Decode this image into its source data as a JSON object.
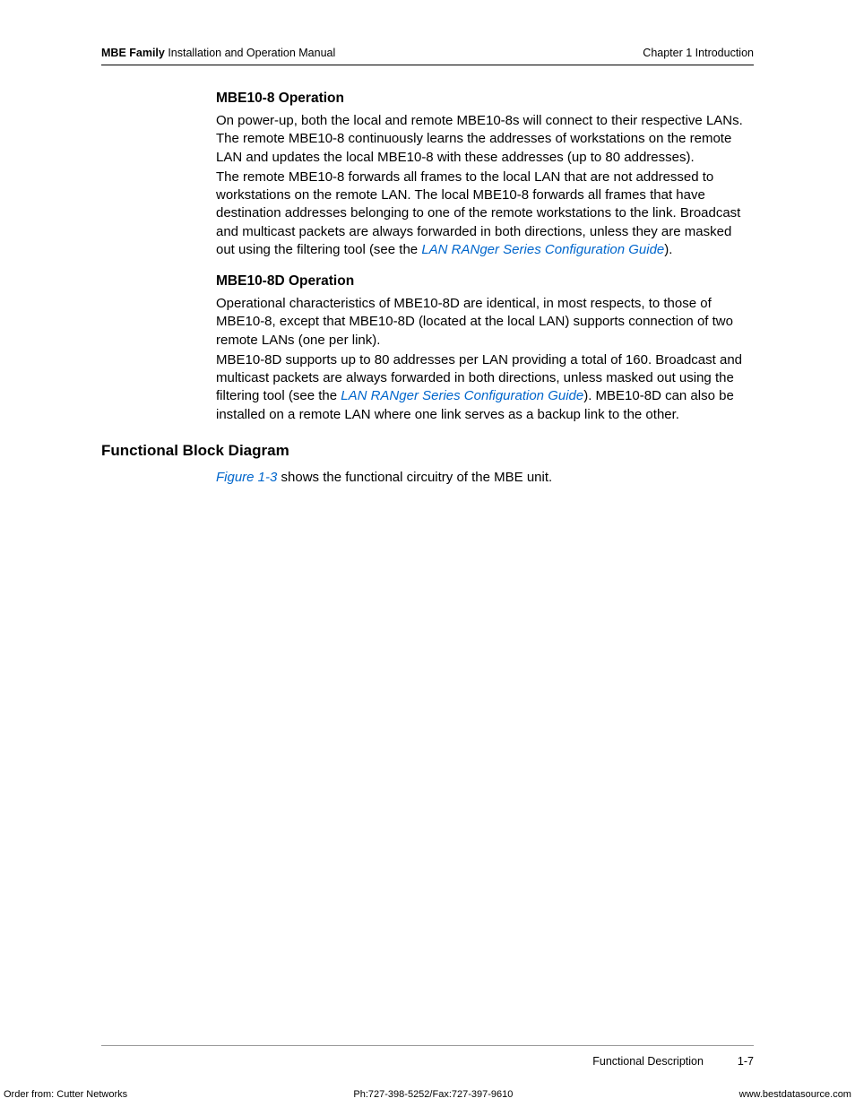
{
  "header": {
    "title_bold": "MBE Family",
    "title_rest": " Installation and Operation Manual",
    "chapter": "Chapter 1  Introduction"
  },
  "section1": {
    "heading": "MBE10-8 Operation",
    "para1": "On power-up, both the local and remote MBE10-8s will connect to their respective LANs. The remote MBE10-8 continuously learns the addresses of workstations on the remote LAN and updates the local MBE10-8 with these addresses (up to 80 addresses).",
    "para2a": "The remote MBE10-8 forwards all frames to the local LAN that are not addressed to workstations on the remote LAN. The local MBE10-8 forwards all frames that have destination addresses belonging to one of the remote workstations to the link. Broadcast and multicast packets are always forwarded in both directions, unless they are masked out using the filtering tool (see the ",
    "para2_link": "LAN RANger Series Configuration Guide",
    "para2b": ")."
  },
  "section2": {
    "heading": "MBE10-8D Operation",
    "para1": "Operational characteristics of MBE10-8D are identical, in most respects, to those of MBE10-8, except that MBE10-8D (located at the local LAN) supports connection of two remote LANs (one per link).",
    "para2a": "MBE10-8D supports up to 80 addresses per LAN providing a total of 160. Broadcast and multicast packets are always forwarded in both directions, unless masked out using the filtering tool (see the ",
    "para2_link": "LAN RANger Series Configuration Guide",
    "para2b": "). MBE10-8D can also be installed on a remote LAN where one link serves as a backup link to the other."
  },
  "section3": {
    "heading": "Functional Block Diagram",
    "para1_link": "Figure 1-3",
    "para1_rest": " shows the functional circuitry of the MBE unit."
  },
  "footer": {
    "label": "Functional Description",
    "page": "1-7"
  },
  "bottom": {
    "left": "Order from: Cutter Networks",
    "center": "Ph:727-398-5252/Fax:727-397-9610",
    "right": "www.bestdatasource.com"
  },
  "colors": {
    "link": "#0066cc",
    "text": "#000000",
    "rule": "#999999"
  },
  "typography": {
    "body_fontsize": 15,
    "heading3_fontsize": 15.5,
    "heading2_fontsize": 17,
    "header_fontsize": 12.5,
    "footer_fontsize": 12.5,
    "bottom_fontsize": 11,
    "line_height": 1.35
  }
}
